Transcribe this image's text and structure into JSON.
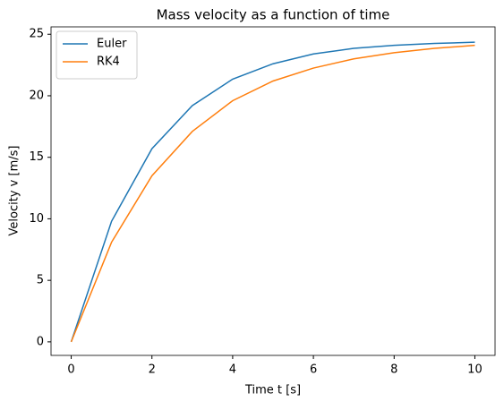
{
  "chart_data": {
    "type": "line",
    "title": "Mass velocity as a function of time",
    "x_label": "Time t [s]",
    "y_label": "Velocity v [m/s]",
    "x": [
      0,
      1,
      2,
      3,
      4,
      5,
      6,
      7,
      8,
      9,
      10
    ],
    "series": [
      {
        "name": "Euler",
        "color": "#1f77b4",
        "values": [
          0,
          9.8,
          15.7,
          19.2,
          21.35,
          22.6,
          23.4,
          23.85,
          24.1,
          24.25,
          24.35
        ]
      },
      {
        "name": "RK4",
        "color": "#ff7f0e",
        "values": [
          0,
          8.1,
          13.5,
          17.1,
          19.6,
          21.2,
          22.25,
          23.0,
          23.5,
          23.85,
          24.1
        ]
      }
    ],
    "xlim": [
      -0.5,
      10.5
    ],
    "xticks": [
      0,
      2,
      4,
      6,
      8,
      10
    ],
    "ylim": [
      -1.1,
      25.6
    ],
    "yticks": [
      0,
      5,
      10,
      15,
      20,
      25
    ],
    "legend": "upper left"
  }
}
